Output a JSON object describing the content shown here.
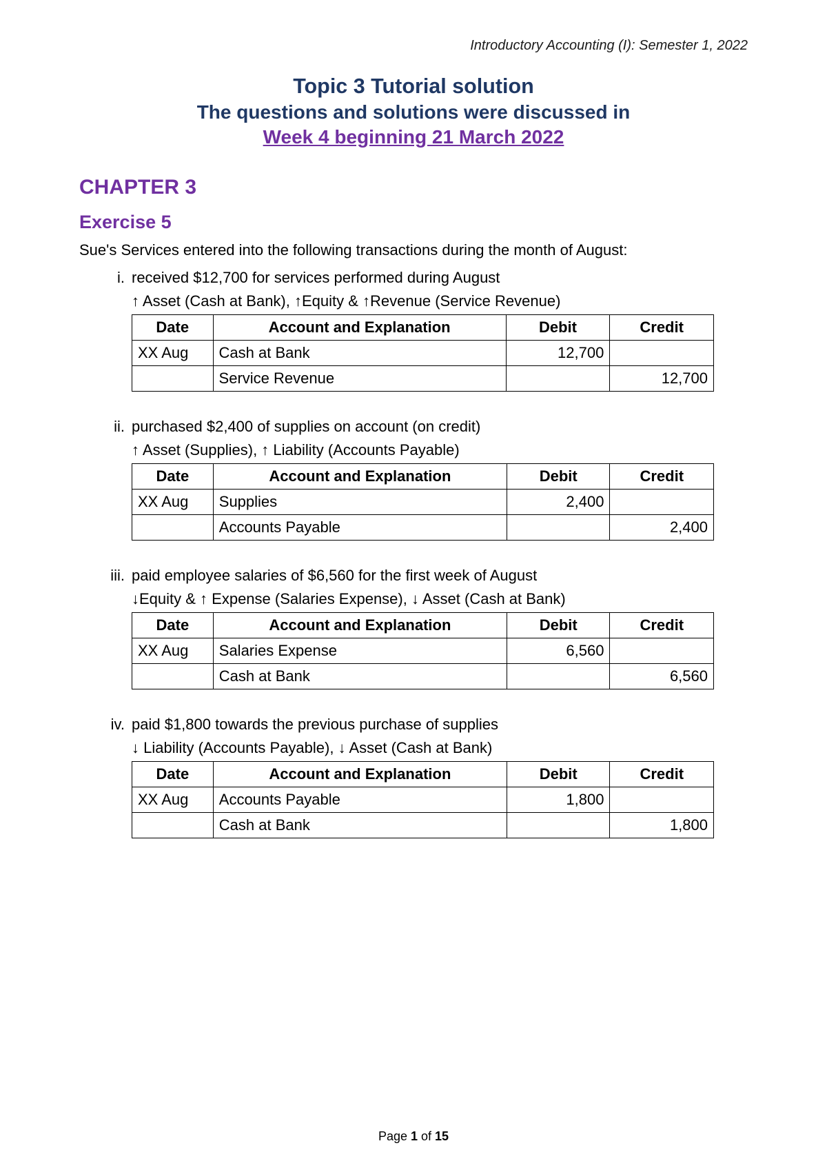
{
  "header": {
    "course": "Introductory Accounting (I): Semester 1, 2022"
  },
  "title": {
    "line1": "Topic 3 Tutorial solution",
    "line2": "The questions and solutions were discussed in",
    "line3": "Week 4 beginning 21 March 2022"
  },
  "chapter": "CHAPTER 3",
  "exercise": "Exercise 5",
  "intro": "Sue's Services entered into the following transactions during the month of August:",
  "table_headers": {
    "date": "Date",
    "acct": "Account and Explanation",
    "debit": "Debit",
    "credit": "Credit"
  },
  "items": [
    {
      "roman": "i.",
      "text": "received $12,700 for services performed during August",
      "effect": "↑ Asset (Cash at Bank), ↑Equity & ↑Revenue (Service Revenue)",
      "r1": {
        "date": "XX Aug",
        "acct": "Cash at Bank",
        "debit": "12,700",
        "credit": ""
      },
      "r2": {
        "date": "",
        "acct": "Service Revenue",
        "debit": "",
        "credit": "12,700"
      }
    },
    {
      "roman": "ii.",
      "text": "purchased $2,400 of supplies on account (on credit)",
      "effect": "↑ Asset (Supplies), ↑ Liability (Accounts Payable)",
      "r1": {
        "date": "XX Aug",
        "acct": "Supplies",
        "debit": "2,400",
        "credit": ""
      },
      "r2": {
        "date": "",
        "acct": "Accounts Payable",
        "debit": "",
        "credit": "2,400"
      }
    },
    {
      "roman": "iii.",
      "text": "paid employee salaries of $6,560 for the first week of August",
      "effect": "↓Equity & ↑ Expense (Salaries Expense), ↓ Asset (Cash at Bank)",
      "r1": {
        "date": "XX Aug",
        "acct": "Salaries Expense",
        "debit": "6,560",
        "credit": ""
      },
      "r2": {
        "date": "",
        "acct": "Cash at Bank",
        "debit": "",
        "credit": "6,560"
      }
    },
    {
      "roman": "iv.",
      "text": "paid $1,800 towards the previous purchase of supplies",
      "effect": "↓ Liability (Accounts Payable), ↓ Asset (Cash at Bank)",
      "r1": {
        "date": "XX Aug",
        "acct": "Accounts Payable",
        "debit": "1,800",
        "credit": ""
      },
      "r2": {
        "date": "",
        "acct": "Cash at Bank",
        "debit": "",
        "credit": "1,800"
      }
    }
  ],
  "footer": {
    "pre": "Page ",
    "cur": "1",
    "mid": " of ",
    "tot": "15"
  }
}
